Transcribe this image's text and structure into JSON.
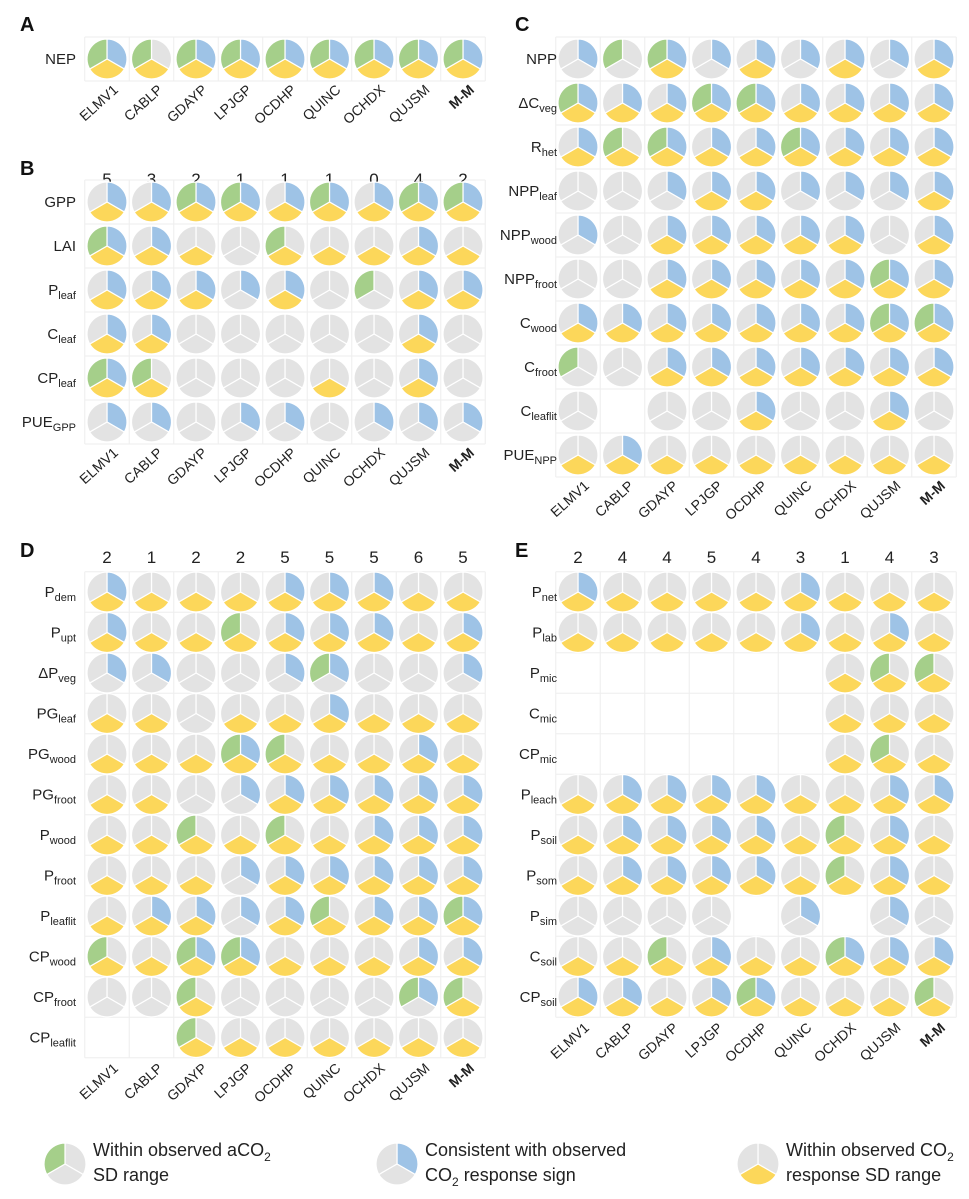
{
  "models": [
    "ELMV1",
    "CABLP",
    "GDAYP",
    "LPJGP",
    "OCDHP",
    "QUINC",
    "OCHDX",
    "QUJSM",
    "M-M"
  ],
  "colors": {
    "green": "#a5cf8a",
    "blue": "#9ec3e6",
    "yellow": "#fcd75a",
    "gray": "#e3e3e3",
    "grid": "#eeeeee"
  },
  "legend": [
    {
      "lines": [
        "Within observed aCO|2|",
        "SD range"
      ],
      "segment": "green"
    },
    {
      "lines": [
        "Consistent with observed",
        "CO|2| response sign"
      ],
      "segment": "blue"
    },
    {
      "lines": [
        "Within observed CO|2|",
        "response SD range"
      ],
      "segment": "yellow"
    }
  ],
  "chart_data": [
    {
      "type": "pie-matrix",
      "panel": "A",
      "columns": [
        "ELMV1",
        "CABLP",
        "GDAYP",
        "LPJGP",
        "OCDHP",
        "QUINC",
        "OCHDX",
        "QUJSM",
        "M-M"
      ],
      "column_counts": [],
      "rows": [
        {
          "label": "NEP",
          "sub": "",
          "cells": [
            "111",
            "101",
            "111",
            "111",
            "111",
            "111",
            "111",
            "111",
            "111"
          ]
        }
      ]
    },
    {
      "type": "pie-matrix",
      "panel": "B",
      "columns": [
        "ELMV1",
        "CABLP",
        "GDAYP",
        "LPJGP",
        "OCDHP",
        "QUINC",
        "OCHDX",
        "QUJSM",
        "M-M"
      ],
      "column_counts": [
        "5",
        "3",
        "2",
        "1",
        "1",
        "1",
        "0",
        "4",
        "2"
      ],
      "rows": [
        {
          "label": "GPP",
          "sub": "",
          "cells": [
            "011",
            "011",
            "111",
            "111",
            "011",
            "111",
            "011",
            "111",
            "111"
          ]
        },
        {
          "label": "LAI",
          "sub": "",
          "cells": [
            "111",
            "011",
            "001",
            "000",
            "101",
            "001",
            "001",
            "011",
            "001"
          ]
        },
        {
          "label": "P",
          "sub": "leaf",
          "cells": [
            "011",
            "011",
            "011",
            "010",
            "011",
            "000",
            "100",
            "011",
            "011"
          ]
        },
        {
          "label": "C",
          "sub": "leaf",
          "cells": [
            "011",
            "011",
            "000",
            "000",
            "000",
            "000",
            "000",
            "011",
            "000"
          ]
        },
        {
          "label": "CP",
          "sub": "leaf",
          "cells": [
            "111",
            "101",
            "000",
            "000",
            "000",
            "001",
            "000",
            "011",
            "000"
          ]
        },
        {
          "label": "PUE",
          "sub": "GPP",
          "cells": [
            "010",
            "010",
            "000",
            "010",
            "010",
            "000",
            "010",
            "010",
            "010"
          ]
        }
      ]
    },
    {
      "type": "pie-matrix",
      "panel": "C",
      "columns": [
        "ELMV1",
        "CABLP",
        "GDAYP",
        "LPJGP",
        "OCDHP",
        "QUINC",
        "OCHDX",
        "QUJSM",
        "M-M"
      ],
      "column_counts": [],
      "rows": [
        {
          "label": "NPP",
          "sub": "",
          "cells": [
            "010",
            "100",
            "111",
            "010",
            "011",
            "010",
            "011",
            "010",
            "011"
          ]
        },
        {
          "label": "ΔC",
          "sub": "veg",
          "cells": [
            "111",
            "011",
            "011",
            "111",
            "111",
            "011",
            "011",
            "011",
            "011"
          ]
        },
        {
          "label": "R",
          "sub": "het",
          "cells": [
            "011",
            "101",
            "111",
            "011",
            "011",
            "111",
            "011",
            "011",
            "011"
          ]
        },
        {
          "label": "NPP",
          "sub": "leaf",
          "cells": [
            "000",
            "000",
            "010",
            "011",
            "011",
            "010",
            "010",
            "010",
            "011"
          ]
        },
        {
          "label": "NPP",
          "sub": "wood",
          "cells": [
            "010",
            "000",
            "011",
            "011",
            "011",
            "011",
            "011",
            "000",
            "011"
          ]
        },
        {
          "label": "NPP",
          "sub": "froot",
          "cells": [
            "000",
            "000",
            "011",
            "011",
            "011",
            "011",
            "011",
            "111",
            "011"
          ]
        },
        {
          "label": "C",
          "sub": "wood",
          "cells": [
            "011",
            "011",
            "011",
            "011",
            "011",
            "011",
            "011",
            "111",
            "111"
          ]
        },
        {
          "label": "C",
          "sub": "froot",
          "cells": [
            "100",
            "000",
            "011",
            "011",
            "011",
            "011",
            "011",
            "011",
            "011"
          ]
        },
        {
          "label": "C",
          "sub": "leaflit",
          "cells": [
            "000",
            null,
            "000",
            "000",
            "011",
            "000",
            "000",
            "011",
            "000"
          ]
        },
        {
          "label": "PUE",
          "sub": "NPP",
          "cells": [
            "001",
            "011",
            "001",
            "001",
            "001",
            "001",
            "001",
            "001",
            "001"
          ]
        }
      ]
    },
    {
      "type": "pie-matrix",
      "panel": "D",
      "columns": [
        "ELMV1",
        "CABLP",
        "GDAYP",
        "LPJGP",
        "OCDHP",
        "QUINC",
        "OCHDX",
        "QUJSM",
        "M-M"
      ],
      "column_counts": [
        "2",
        "1",
        "2",
        "2",
        "5",
        "5",
        "5",
        "6",
        "5"
      ],
      "rows": [
        {
          "label": "P",
          "sub": "dem",
          "cells": [
            "011",
            "001",
            "001",
            "001",
            "011",
            "011",
            "011",
            "001",
            "001"
          ]
        },
        {
          "label": "P",
          "sub": "upt",
          "cells": [
            "011",
            "001",
            "001",
            "101",
            "011",
            "011",
            "011",
            "001",
            "011"
          ]
        },
        {
          "label": "ΔP",
          "sub": "veg",
          "cells": [
            "010",
            "010",
            "000",
            "000",
            "010",
            "110",
            "000",
            "000",
            "010"
          ]
        },
        {
          "label": "PG",
          "sub": "leaf",
          "cells": [
            "001",
            "001",
            "000",
            "001",
            "001",
            "011",
            "001",
            "001",
            "001"
          ]
        },
        {
          "label": "PG",
          "sub": "wood",
          "cells": [
            "001",
            "001",
            "001",
            "111",
            "101",
            "001",
            "001",
            "011",
            "001"
          ]
        },
        {
          "label": "PG",
          "sub": "froot",
          "cells": [
            "001",
            "001",
            "000",
            "010",
            "011",
            "011",
            "011",
            "011",
            "011"
          ]
        },
        {
          "label": "P",
          "sub": "wood",
          "cells": [
            "001",
            "001",
            "101",
            "001",
            "101",
            "001",
            "011",
            "011",
            "011"
          ]
        },
        {
          "label": "P",
          "sub": "froot",
          "cells": [
            "001",
            "001",
            "001",
            "010",
            "011",
            "011",
            "011",
            "011",
            "011"
          ]
        },
        {
          "label": "P",
          "sub": "leaflit",
          "cells": [
            "001",
            "011",
            "011",
            "010",
            "011",
            "101",
            "011",
            "011",
            "111"
          ]
        },
        {
          "label": "CP",
          "sub": "wood",
          "cells": [
            "101",
            "001",
            "111",
            "111",
            "001",
            "001",
            "001",
            "011",
            "011"
          ]
        },
        {
          "label": "CP",
          "sub": "froot",
          "cells": [
            "000",
            "000",
            "101",
            "000",
            "000",
            "000",
            "000",
            "110",
            "101"
          ]
        },
        {
          "label": "CP",
          "sub": "leaflit",
          "cells": [
            null,
            null,
            "101",
            "001",
            "001",
            "001",
            "001",
            "001",
            "001"
          ]
        }
      ]
    },
    {
      "type": "pie-matrix",
      "panel": "E",
      "columns": [
        "ELMV1",
        "CABLP",
        "GDAYP",
        "LPJGP",
        "OCDHP",
        "QUINC",
        "OCHDX",
        "QUJSM",
        "M-M"
      ],
      "column_counts": [
        "2",
        "4",
        "4",
        "5",
        "4",
        "3",
        "1",
        "4",
        "3"
      ],
      "rows": [
        {
          "label": "P",
          "sub": "net",
          "cells": [
            "011",
            "001",
            "001",
            "001",
            "001",
            "011",
            "001",
            "001",
            "001"
          ]
        },
        {
          "label": "P",
          "sub": "lab",
          "cells": [
            "001",
            "001",
            "001",
            "001",
            "001",
            "011",
            "001",
            "011",
            "001"
          ]
        },
        {
          "label": "P",
          "sub": "mic",
          "cells": [
            null,
            null,
            null,
            null,
            null,
            null,
            "001",
            "101",
            "101"
          ]
        },
        {
          "label": "C",
          "sub": "mic",
          "cells": [
            null,
            null,
            null,
            null,
            null,
            null,
            "001",
            "001",
            "001"
          ]
        },
        {
          "label": "CP",
          "sub": "mic",
          "cells": [
            null,
            null,
            null,
            null,
            null,
            null,
            "001",
            "101",
            "001"
          ]
        },
        {
          "label": "P",
          "sub": "leach",
          "cells": [
            "001",
            "011",
            "011",
            "011",
            "011",
            "001",
            "001",
            "011",
            "011"
          ]
        },
        {
          "label": "P",
          "sub": "soil",
          "cells": [
            "001",
            "011",
            "011",
            "011",
            "011",
            "001",
            "101",
            "011",
            "001"
          ]
        },
        {
          "label": "P",
          "sub": "som",
          "cells": [
            "001",
            "011",
            "011",
            "011",
            "011",
            "001",
            "101",
            "011",
            "001"
          ]
        },
        {
          "label": "P",
          "sub": "sim",
          "cells": [
            "000",
            "000",
            "000",
            "000",
            null,
            "010",
            null,
            "010",
            "000"
          ]
        },
        {
          "label": "C",
          "sub": "soil",
          "cells": [
            "001",
            "001",
            "101",
            "011",
            "001",
            "001",
            "111",
            "011",
            "011"
          ]
        },
        {
          "label": "CP",
          "sub": "soil",
          "cells": [
            "011",
            "011",
            "001",
            "011",
            "111",
            "001",
            "001",
            "001",
            "101"
          ]
        }
      ]
    }
  ]
}
